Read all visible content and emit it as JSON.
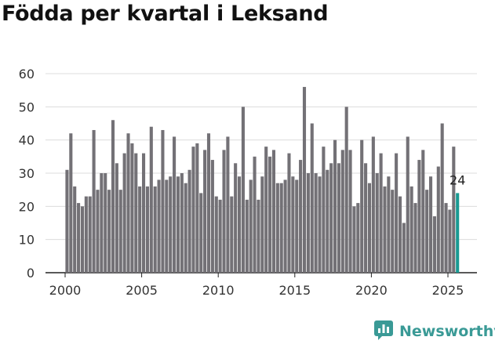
{
  "chart_data": {
    "type": "bar",
    "title": "Födda per kvartal i Leksand",
    "xlabel": "",
    "ylabel": "",
    "ylim": [
      0,
      60
    ],
    "y_ticks": [
      "0",
      "10",
      "20",
      "30",
      "40",
      "50",
      "60"
    ],
    "x_ticks": [
      "2000",
      "2005",
      "2010",
      "2015",
      "2020",
      "2025"
    ],
    "start_year": 2000,
    "start_quarter": 1,
    "values": [
      31,
      42,
      26,
      21,
      20,
      23,
      23,
      43,
      25,
      30,
      30,
      25,
      46,
      33,
      25,
      36,
      42,
      39,
      36,
      26,
      36,
      26,
      44,
      26,
      28,
      43,
      28,
      29,
      41,
      29,
      30,
      27,
      31,
      38,
      39,
      24,
      37,
      42,
      34,
      23,
      22,
      37,
      41,
      23,
      33,
      29,
      50,
      22,
      28,
      35,
      22,
      29,
      38,
      35,
      37,
      27,
      27,
      28,
      36,
      29,
      28,
      34,
      56,
      30,
      45,
      30,
      29,
      38,
      31,
      33,
      40,
      33,
      37,
      50,
      37,
      20,
      21,
      40,
      33,
      27,
      41,
      30,
      36,
      26,
      29,
      25,
      36,
      23,
      15,
      41,
      26,
      21,
      34,
      37,
      25,
      29,
      17,
      32,
      45,
      21,
      19,
      38,
      24
    ],
    "highlight_label": "24",
    "colors": {
      "bar": "#737176",
      "highlight": "#1a9a93",
      "grid": "#dcdcdc",
      "axis": "#222222"
    }
  },
  "brand": {
    "name": "Newsworthy",
    "icon": "newsworthy-logo-icon"
  }
}
